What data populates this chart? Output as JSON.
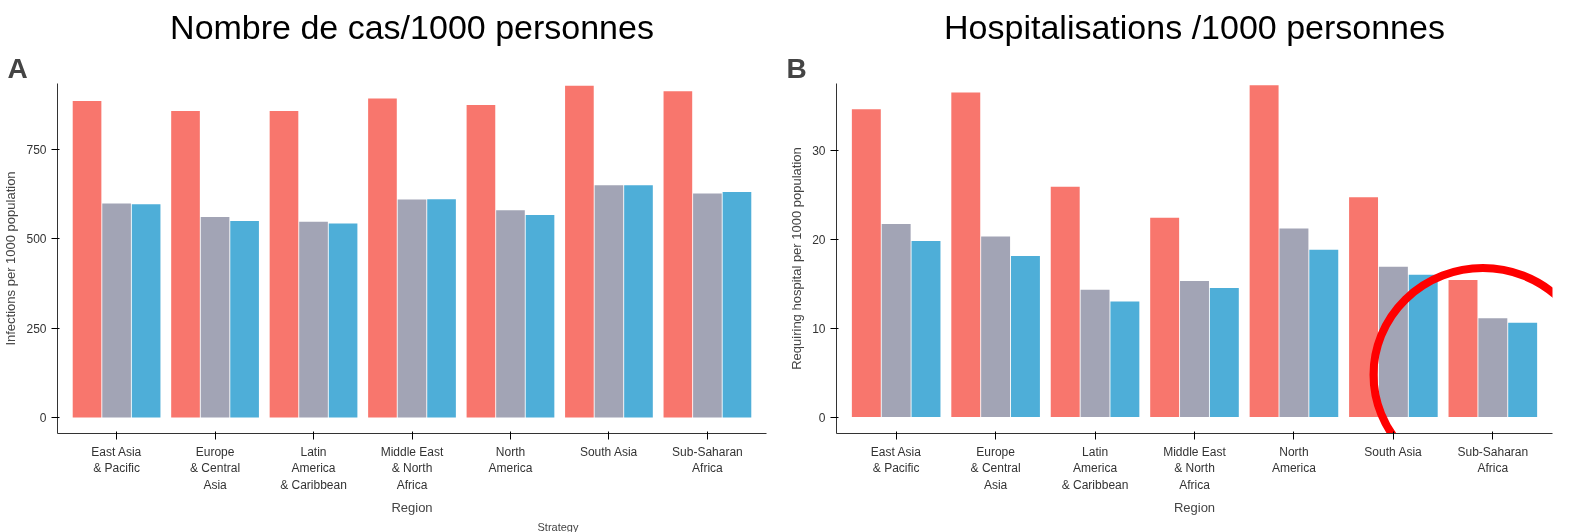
{
  "chart_data": [
    {
      "type": "bar",
      "title": "Nombre de cas/1000 personnes",
      "xlabel": "Region",
      "ylabel": "Infections per 1000 population",
      "annotations": [
        "A",
        "Strategy"
      ],
      "categories": [
        "East Asia\n& Pacific",
        "Europe\n& Central\nAsia",
        "Latin\nAmerica\n& Caribbean",
        "Middle East\n& North\nAfrica",
        "North\nAmerica",
        "South Asia",
        "Sub-Saharan\nAfrica"
      ],
      "series": [
        {
          "color": "#f8766d",
          "values": [
            886,
            858,
            858,
            893,
            875,
            929,
            913
          ]
        },
        {
          "color": "#a2a4b5",
          "values": [
            599,
            561,
            548,
            610,
            580,
            650,
            627
          ]
        },
        {
          "color": "#4eaed8",
          "values": [
            597,
            550,
            543,
            611,
            567,
            650,
            631
          ]
        }
      ],
      "ylim": [
        -45,
        935
      ],
      "yticks": [
        0,
        250,
        500,
        750
      ],
      "grid": false
    },
    {
      "type": "bar",
      "title": "Hospitalisations /1000 personnes",
      "xlabel": "Region",
      "ylabel": "Requiring hospital per 1000 population",
      "annotations": [
        "B"
      ],
      "categories": [
        "East Asia\n& Pacific",
        "Europe\n& Central\nAsia",
        "Latin\nAmerica\n& Caribbean",
        "Middle East\n& North\nAfrica",
        "North\nAmerica",
        "South Asia",
        "Sub-Saharan\nAfrica"
      ],
      "series": [
        {
          "color": "#f8766d",
          "values": [
            34.6,
            36.5,
            25.9,
            22.4,
            37.3,
            24.7,
            15.4
          ]
        },
        {
          "color": "#a2a4b5",
          "values": [
            21.7,
            20.3,
            14.3,
            15.3,
            21.2,
            16.9,
            11.1
          ]
        },
        {
          "color": "#4eaed8",
          "values": [
            19.8,
            18.1,
            13.0,
            14.5,
            18.8,
            16.0,
            10.6
          ]
        }
      ],
      "ylim": [
        -1.85,
        37.5
      ],
      "yticks": [
        0,
        10,
        20,
        30
      ],
      "grid": false
    }
  ]
}
